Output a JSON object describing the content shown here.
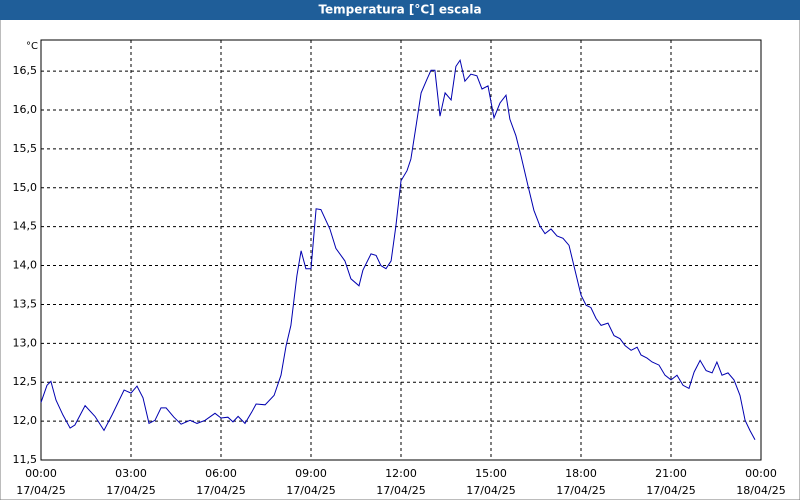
{
  "chart_data": {
    "type": "line",
    "title": "Temperatura [°C] escala",
    "y_unit": "°C",
    "x": [
      0,
      0.2,
      0.33,
      0.5,
      0.73,
      0.97,
      1.13,
      1.47,
      1.8,
      2.1,
      2.37,
      2.77,
      3.0,
      3.2,
      3.4,
      3.6,
      3.8,
      4.0,
      4.17,
      4.43,
      4.67,
      4.97,
      5.2,
      5.47,
      5.8,
      6.0,
      6.23,
      6.4,
      6.57,
      6.8,
      7.03,
      7.17,
      7.47,
      7.77,
      8.0,
      8.17,
      8.33,
      8.53,
      8.67,
      8.83,
      9.0,
      9.17,
      9.33,
      9.63,
      9.83,
      10.13,
      10.33,
      10.6,
      10.73,
      11.0,
      11.17,
      11.33,
      11.5,
      11.67,
      11.83,
      12.0,
      12.2,
      12.33,
      12.5,
      12.67,
      12.87,
      13.0,
      13.13,
      13.3,
      13.47,
      13.67,
      13.83,
      13.97,
      14.13,
      14.33,
      14.53,
      14.7,
      14.9,
      15.1,
      15.3,
      15.5,
      15.63,
      15.83,
      16.0,
      16.23,
      16.43,
      16.63,
      16.8,
      17.0,
      17.2,
      17.4,
      17.6,
      17.8,
      18.0,
      18.17,
      18.33,
      18.5,
      18.67,
      18.9,
      19.1,
      19.3,
      19.47,
      19.67,
      19.87,
      20.0,
      20.2,
      20.37,
      20.6,
      20.8,
      21.0,
      21.2,
      21.4,
      21.6,
      21.77,
      21.97,
      22.17,
      22.37,
      22.53,
      22.7,
      22.9,
      23.1,
      23.3,
      23.47,
      23.63,
      23.8
    ],
    "series": [
      {
        "name": "Temperatura",
        "color": "#0000b0",
        "values": [
          12.24,
          12.46,
          12.51,
          12.27,
          12.08,
          11.91,
          11.95,
          12.2,
          12.06,
          11.88,
          12.08,
          12.4,
          12.36,
          12.45,
          12.3,
          11.97,
          12.01,
          12.17,
          12.17,
          12.05,
          11.96,
          12.01,
          11.97,
          12.01,
          12.1,
          12.04,
          12.05,
          11.99,
          12.06,
          11.97,
          12.12,
          12.22,
          12.21,
          12.33,
          12.59,
          12.97,
          13.23,
          13.87,
          14.19,
          13.96,
          13.96,
          14.73,
          14.72,
          14.47,
          14.22,
          14.06,
          13.83,
          13.74,
          13.94,
          14.15,
          14.13,
          14.0,
          13.96,
          14.06,
          14.51,
          15.09,
          15.22,
          15.37,
          15.79,
          16.22,
          16.4,
          16.51,
          16.51,
          15.92,
          16.22,
          16.13,
          16.56,
          16.64,
          16.37,
          16.46,
          16.44,
          16.27,
          16.31,
          15.9,
          16.09,
          16.19,
          15.88,
          15.67,
          15.41,
          15.03,
          14.71,
          14.51,
          14.41,
          14.47,
          14.38,
          14.35,
          14.26,
          13.94,
          13.62,
          13.49,
          13.46,
          13.32,
          13.23,
          13.26,
          13.1,
          13.06,
          12.97,
          12.91,
          12.95,
          12.85,
          12.81,
          12.76,
          12.72,
          12.59,
          12.53,
          12.59,
          12.46,
          12.42,
          12.63,
          12.78,
          12.65,
          12.62,
          12.76,
          12.59,
          12.62,
          12.53,
          12.33,
          12.01,
          11.88,
          11.76
        ]
      }
    ],
    "xlim": [
      0,
      24
    ],
    "xticks": [
      {
        "value": 0,
        "label": "00:00"
      },
      {
        "value": 3,
        "label": "03:00"
      },
      {
        "value": 6,
        "label": "06:00"
      },
      {
        "value": 9,
        "label": "09:00"
      },
      {
        "value": 12,
        "label": "12:00"
      },
      {
        "value": 15,
        "label": "15:00"
      },
      {
        "value": 18,
        "label": "18:00"
      },
      {
        "value": 21,
        "label": "21:00"
      },
      {
        "value": 24,
        "label": "00:00"
      }
    ],
    "xtick_dates": [
      "17/04/25",
      "17/04/25",
      "17/04/25",
      "17/04/25",
      "17/04/25",
      "17/04/25",
      "17/04/25",
      "17/04/25",
      "18/04/25"
    ],
    "ylim": [
      11.5,
      16.9
    ],
    "yticks": [
      {
        "value": 11.5,
        "label": "11,5"
      },
      {
        "value": 12,
        "label": "12,0"
      },
      {
        "value": 12.5,
        "label": "12,5"
      },
      {
        "value": 13,
        "label": "13,0"
      },
      {
        "value": 13.5,
        "label": "13,5"
      },
      {
        "value": 14,
        "label": "14,0"
      },
      {
        "value": 14.5,
        "label": "14,5"
      },
      {
        "value": 15,
        "label": "15,0"
      },
      {
        "value": 15.5,
        "label": "15,5"
      },
      {
        "value": 16,
        "label": "16,0"
      },
      {
        "value": 16.5,
        "label": "16,5"
      }
    ],
    "grid": true
  }
}
